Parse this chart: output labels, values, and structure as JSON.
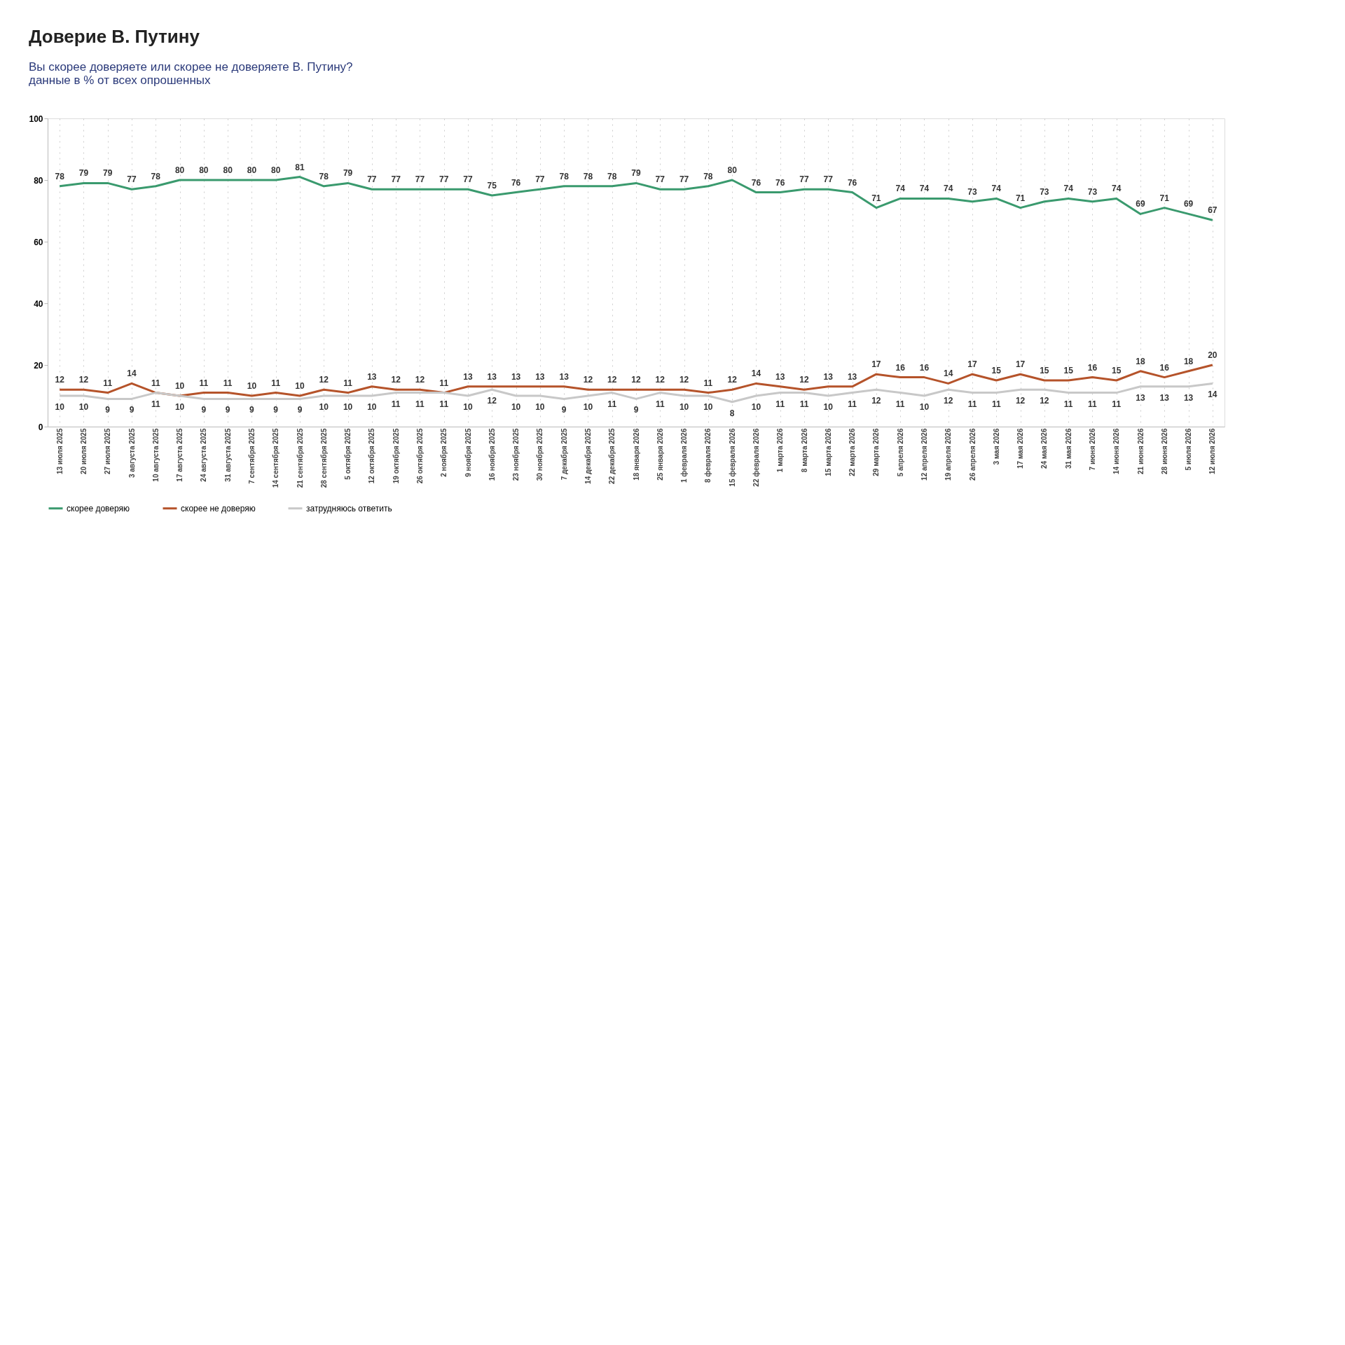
{
  "chart_data": {
    "type": "line",
    "title": "Доверие В. Путину",
    "subtitle": "Вы скорее доверяете или скорее не доверяете В. Путину?",
    "annotations": [
      "данные в % от всех опрошенных"
    ],
    "categories": [
      "13 июля 2025",
      "20 июля 2025",
      "27 июля 2025",
      "3 августа 2025",
      "10 августа 2025",
      "17 августа 2025",
      "24 августа 2025",
      "31 августа 2025",
      "7 сентября 2025",
      "14 сентября 2025",
      "21 сентября 2025",
      "28 сентября 2025",
      "5 октября 2025",
      "12 октября 2025",
      "19 октября 2025",
      "26 октября 2025",
      "2 ноября 2025",
      "9 ноября 2025",
      "16 ноября 2025",
      "23 ноября 2025",
      "30 ноября 2025",
      "7 декабря 2025",
      "14 декабря 2025",
      "22 декабря 2025",
      "18 января 2026",
      "25 января 2026",
      "1 февраля 2026",
      "8 февраля 2026",
      "15 февраля 2026",
      "22 февраля 2026",
      "1 марта 2026",
      "8 марта 2026",
      "15 марта 2026",
      "22 марта 2026",
      "29 марта 2026",
      "5 апреля 2026",
      "12 апреля 2026",
      "19 апреля 2026",
      "26 апреля 2026",
      "3 мая 2026",
      "17 мая 2026",
      "24 мая 2026",
      "31 мая 2026",
      "7 июня 2026",
      "14 июня 2026",
      "21 июня 2026",
      "28 июня 2026",
      "5 июля 2026",
      "12 июля 2026"
    ],
    "series": [
      {
        "name": "скорее доверяю",
        "color": "#3a9a6e",
        "values": [
          78,
          79,
          79,
          77,
          78,
          80,
          80,
          80,
          80,
          80,
          81,
          78,
          79,
          77,
          77,
          77,
          77,
          77,
          75,
          76,
          77,
          78,
          78,
          78,
          79,
          77,
          77,
          78,
          80,
          76,
          76,
          77,
          77,
          76,
          71,
          74,
          74,
          74,
          73,
          74,
          71,
          73,
          74,
          73,
          74,
          69,
          71,
          69,
          67
        ]
      },
      {
        "name": "скорее не доверяю",
        "color": "#b5532a",
        "values": [
          12,
          12,
          11,
          14,
          11,
          10,
          11,
          11,
          10,
          11,
          10,
          12,
          11,
          13,
          12,
          12,
          11,
          13,
          13,
          13,
          13,
          13,
          12,
          12,
          12,
          12,
          12,
          11,
          12,
          14,
          13,
          12,
          13,
          13,
          17,
          16,
          16,
          14,
          17,
          15,
          17,
          15,
          15,
          16,
          15,
          18,
          16,
          18,
          20
        ]
      },
      {
        "name": "затрудняюсь ответить",
        "color": "#c8c8c8",
        "values": [
          10,
          10,
          9,
          9,
          11,
          10,
          9,
          9,
          9,
          9,
          9,
          10,
          10,
          10,
          11,
          11,
          11,
          10,
          12,
          10,
          10,
          9,
          10,
          11,
          9,
          11,
          10,
          10,
          8,
          10,
          11,
          11,
          10,
          11,
          12,
          11,
          10,
          12,
          11,
          11,
          12,
          12,
          11,
          11,
          11,
          13,
          13,
          13,
          14
        ]
      }
    ],
    "ylim": [
      0,
      100
    ],
    "yticks": [
      0,
      20,
      40,
      60,
      80,
      100
    ],
    "grid": "x",
    "legend": "bottom",
    "data_labels": true,
    "marker": "none",
    "line_style": "solid"
  }
}
